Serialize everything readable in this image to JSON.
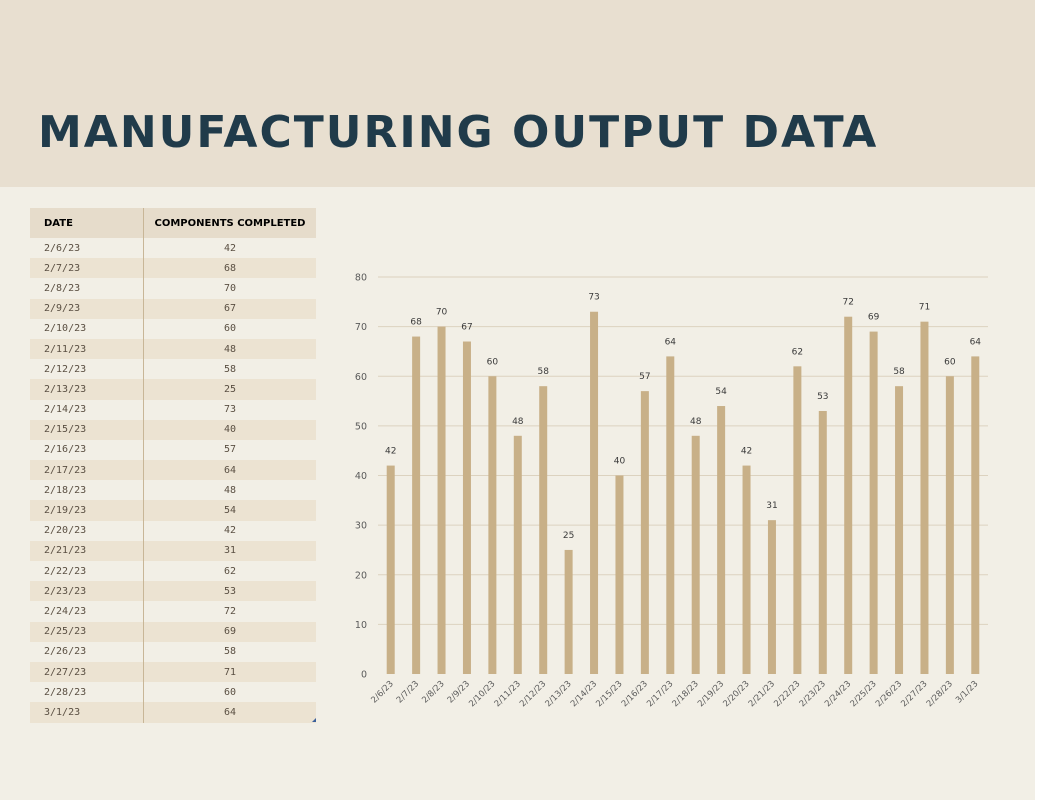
{
  "page": {
    "title": "MANUFACTURING OUTPUT DATA",
    "title_color": "#203b4a",
    "banner_color": "#e8dfd0",
    "background_color": "#f2efe6"
  },
  "table": {
    "columns": [
      "DATE",
      "COMPONENTS COMPLETED"
    ],
    "header_bg": "#e6dccb",
    "stripe_bg": "#ece3d2",
    "rows": [
      [
        "2/6/23",
        "42"
      ],
      [
        "2/7/23",
        "68"
      ],
      [
        "2/8/23",
        "70"
      ],
      [
        "2/9/23",
        "67"
      ],
      [
        "2/10/23",
        "60"
      ],
      [
        "2/11/23",
        "48"
      ],
      [
        "2/12/23",
        "58"
      ],
      [
        "2/13/23",
        "25"
      ],
      [
        "2/14/23",
        "73"
      ],
      [
        "2/15/23",
        "40"
      ],
      [
        "2/16/23",
        "57"
      ],
      [
        "2/17/23",
        "64"
      ],
      [
        "2/18/23",
        "48"
      ],
      [
        "2/19/23",
        "54"
      ],
      [
        "2/20/23",
        "42"
      ],
      [
        "2/21/23",
        "31"
      ],
      [
        "2/22/23",
        "62"
      ],
      [
        "2/23/23",
        "53"
      ],
      [
        "2/24/23",
        "72"
      ],
      [
        "2/25/23",
        "69"
      ],
      [
        "2/26/23",
        "58"
      ],
      [
        "2/27/23",
        "71"
      ],
      [
        "2/28/23",
        "60"
      ],
      [
        "3/1/23",
        "64"
      ]
    ]
  },
  "chart_data": {
    "type": "bar",
    "title": "",
    "xlabel": "",
    "ylabel": "",
    "categories": [
      "2/6/23",
      "2/7/23",
      "2/8/23",
      "2/9/23",
      "2/10/23",
      "2/11/23",
      "2/12/23",
      "2/13/23",
      "2/14/23",
      "2/15/23",
      "2/16/23",
      "2/17/23",
      "2/18/23",
      "2/19/23",
      "2/20/23",
      "2/21/23",
      "2/22/23",
      "2/23/23",
      "2/24/23",
      "2/25/23",
      "2/26/23",
      "2/27/23",
      "2/28/23",
      "3/1/23"
    ],
    "values": [
      42,
      68,
      70,
      67,
      60,
      48,
      58,
      25,
      73,
      40,
      57,
      64,
      48,
      54,
      42,
      31,
      62,
      53,
      72,
      69,
      58,
      71,
      60,
      64
    ],
    "ylim": [
      0,
      80
    ],
    "yticks": [
      0,
      10,
      20,
      30,
      40,
      50,
      60,
      70,
      80
    ],
    "data_labels": true,
    "grid": true,
    "legend": "none",
    "bar_color": "#c8b088",
    "grid_color": "#dcd2bf",
    "label_color": "#3a3a3a",
    "tick_color": "#5a5a5a"
  }
}
